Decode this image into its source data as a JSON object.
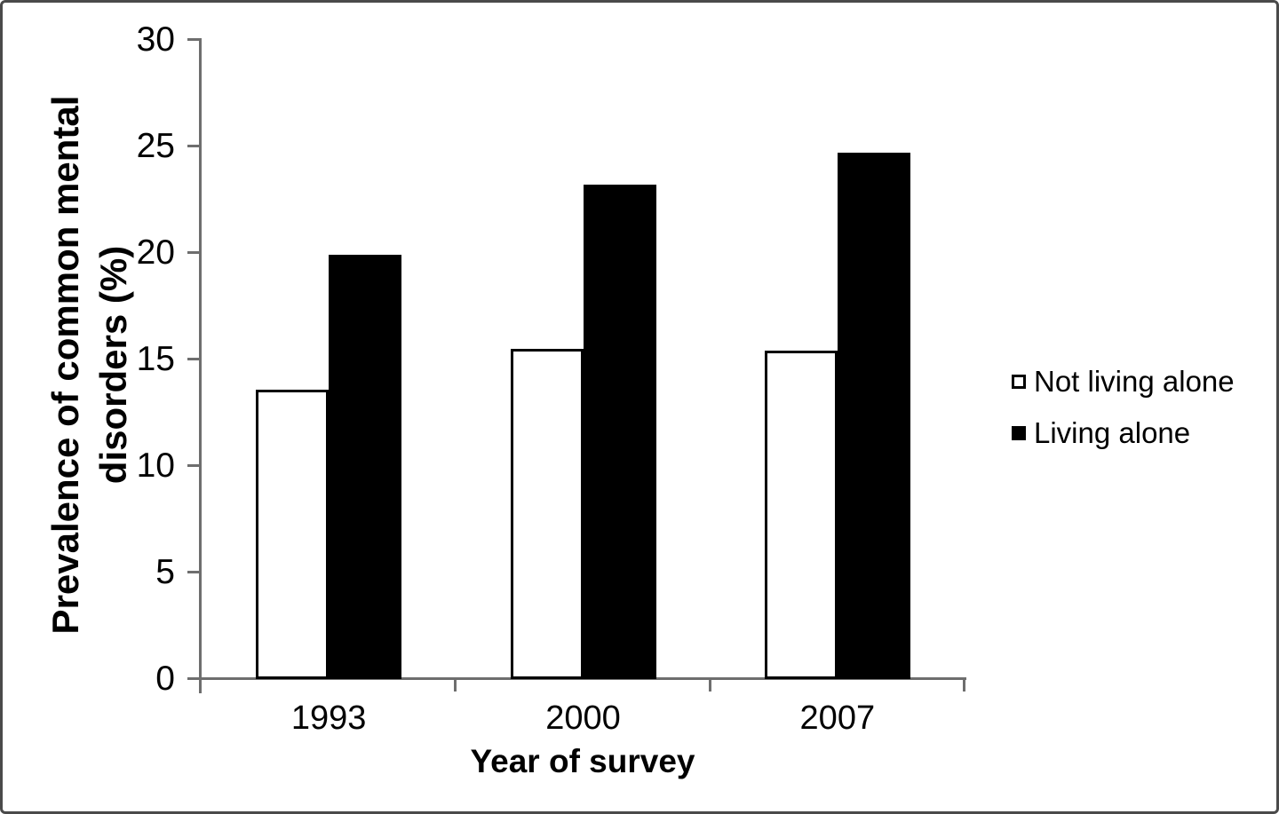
{
  "figure": {
    "background": "#ffffff",
    "border_color": "#4a4a4a"
  },
  "chart_data": {
    "type": "bar",
    "title": "",
    "categories": [
      "1993",
      "2000",
      "2007"
    ],
    "series": [
      {
        "name": "Not living alone",
        "values": [
          13.6,
          15.5,
          15.4
        ],
        "fill": "#ffffff",
        "stroke": "#000000"
      },
      {
        "name": "Living alone",
        "values": [
          19.9,
          23.2,
          24.7
        ],
        "fill": "#000000",
        "stroke": "#000000"
      }
    ],
    "xlabel": "Year of survey",
    "ylabel_line1": "Prevalence of common mental",
    "ylabel_line2": "disorders (%)",
    "ylim": [
      0,
      30
    ],
    "yticks": [
      0,
      5,
      10,
      15,
      20,
      25,
      30
    ],
    "grid": false,
    "axis_color": "#6e6e6e",
    "legend_position": "right",
    "legend": [
      {
        "label": "Not living alone",
        "marker": "open-square"
      },
      {
        "label": "Living alone",
        "marker": "filled-square"
      }
    ]
  }
}
